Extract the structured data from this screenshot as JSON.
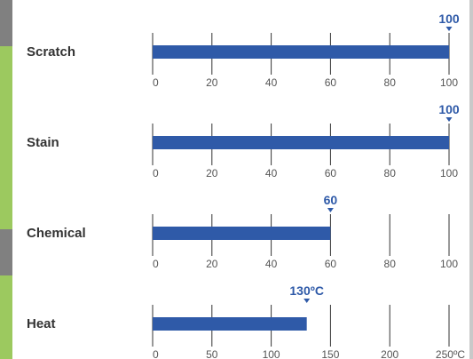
{
  "colors": {
    "bar": "#2f5aa8",
    "marker": "#2f5aa8",
    "grid": "#333333",
    "left_strip": "#9cc95f",
    "left_strip_dark": "#808080"
  },
  "chart_data": [
    {
      "type": "bar",
      "categories": [
        "Scratch"
      ],
      "values": [
        100
      ],
      "value_label": "100",
      "xlim": [
        0,
        100
      ],
      "ticks": [
        "0",
        "20",
        "40",
        "60",
        "80",
        "100"
      ],
      "grid": true
    },
    {
      "type": "bar",
      "categories": [
        "Stain"
      ],
      "values": [
        100
      ],
      "value_label": "100",
      "xlim": [
        0,
        100
      ],
      "ticks": [
        "0",
        "20",
        "40",
        "60",
        "80",
        "100"
      ],
      "grid": true
    },
    {
      "type": "bar",
      "categories": [
        "Chemical"
      ],
      "values": [
        60
      ],
      "value_label": "60",
      "xlim": [
        0,
        100
      ],
      "ticks": [
        "0",
        "20",
        "40",
        "60",
        "80",
        "100"
      ],
      "grid": true
    },
    {
      "type": "bar",
      "categories": [
        "Heat"
      ],
      "values": [
        130
      ],
      "value_label": "130ºC",
      "xlim": [
        0,
        250
      ],
      "ticks": [
        "0",
        "50",
        "100",
        "150",
        "200",
        "250ºC"
      ],
      "grid": true
    }
  ]
}
